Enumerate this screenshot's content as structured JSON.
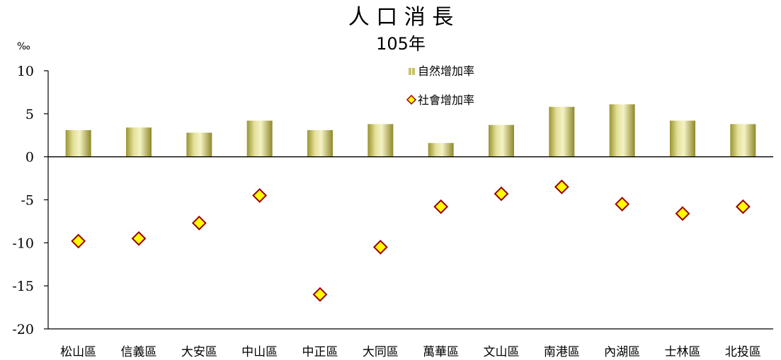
{
  "chart_data": {
    "type": "bar",
    "title": "人 口 消 長",
    "subtitle": "105年",
    "yunit": "‰",
    "ylim": [
      -20,
      10
    ],
    "yticks": [
      "10",
      "5",
      "0",
      "-5",
      "-10",
      "-15",
      "-20"
    ],
    "categories": [
      "松山區",
      "信義區",
      "大安區",
      "中山區",
      "中正區",
      "大同區",
      "萬華區",
      "文山區",
      "南港區",
      "內湖區",
      "士林區",
      "北投區"
    ],
    "series": [
      {
        "name": "自然增加率",
        "type": "bar",
        "color": "#c8c36a",
        "values": [
          3.1,
          3.4,
          2.8,
          4.2,
          3.1,
          3.8,
          1.6,
          3.7,
          5.8,
          6.1,
          4.2,
          3.8
        ]
      },
      {
        "name": "社會增加率",
        "type": "scatter",
        "marker": "diamond",
        "color": "#ffff00",
        "edge_color": "#990000",
        "values": [
          -9.8,
          -9.5,
          -7.7,
          -4.5,
          -16.0,
          -10.5,
          -5.8,
          -4.3,
          -3.5,
          -5.5,
          -6.6,
          -5.8
        ]
      }
    ],
    "legend_position": "top-center"
  }
}
